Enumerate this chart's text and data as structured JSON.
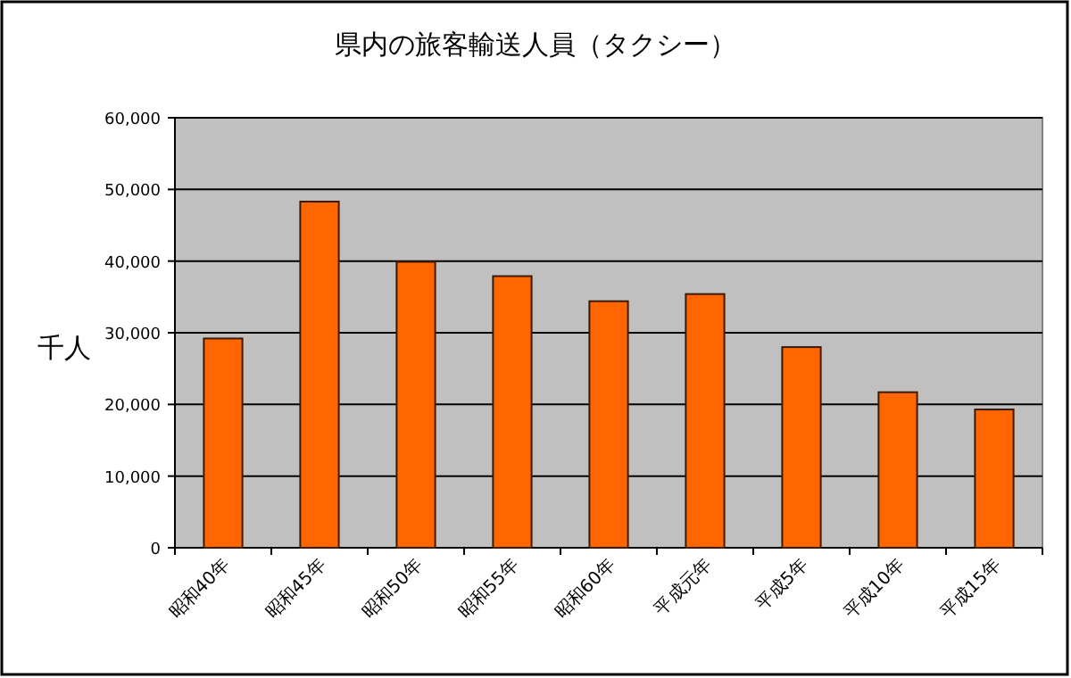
{
  "chart_data": {
    "type": "bar",
    "title": "県内の旅客輸送人員（タクシー）",
    "ylabel": "千人",
    "categories": [
      "昭和40年",
      "昭和45年",
      "昭和50年",
      "昭和55年",
      "昭和60年",
      "平成元年",
      "平成5年",
      "平成10年",
      "平成15年"
    ],
    "values": [
      29200,
      48300,
      39900,
      37900,
      34400,
      35400,
      28000,
      21700,
      19300
    ],
    "color": "#ff6600",
    "ylim": [
      0,
      60000
    ],
    "yticks": [
      {
        "value": 0,
        "label": "0"
      },
      {
        "value": 10000,
        "label": "10,000"
      },
      {
        "value": 20000,
        "label": "20,000"
      },
      {
        "value": 30000,
        "label": "30,000"
      },
      {
        "value": 40000,
        "label": "40,000"
      },
      {
        "value": 50000,
        "label": "50,000"
      },
      {
        "value": 60000,
        "label": "60,000"
      }
    ],
    "grid": "y"
  }
}
